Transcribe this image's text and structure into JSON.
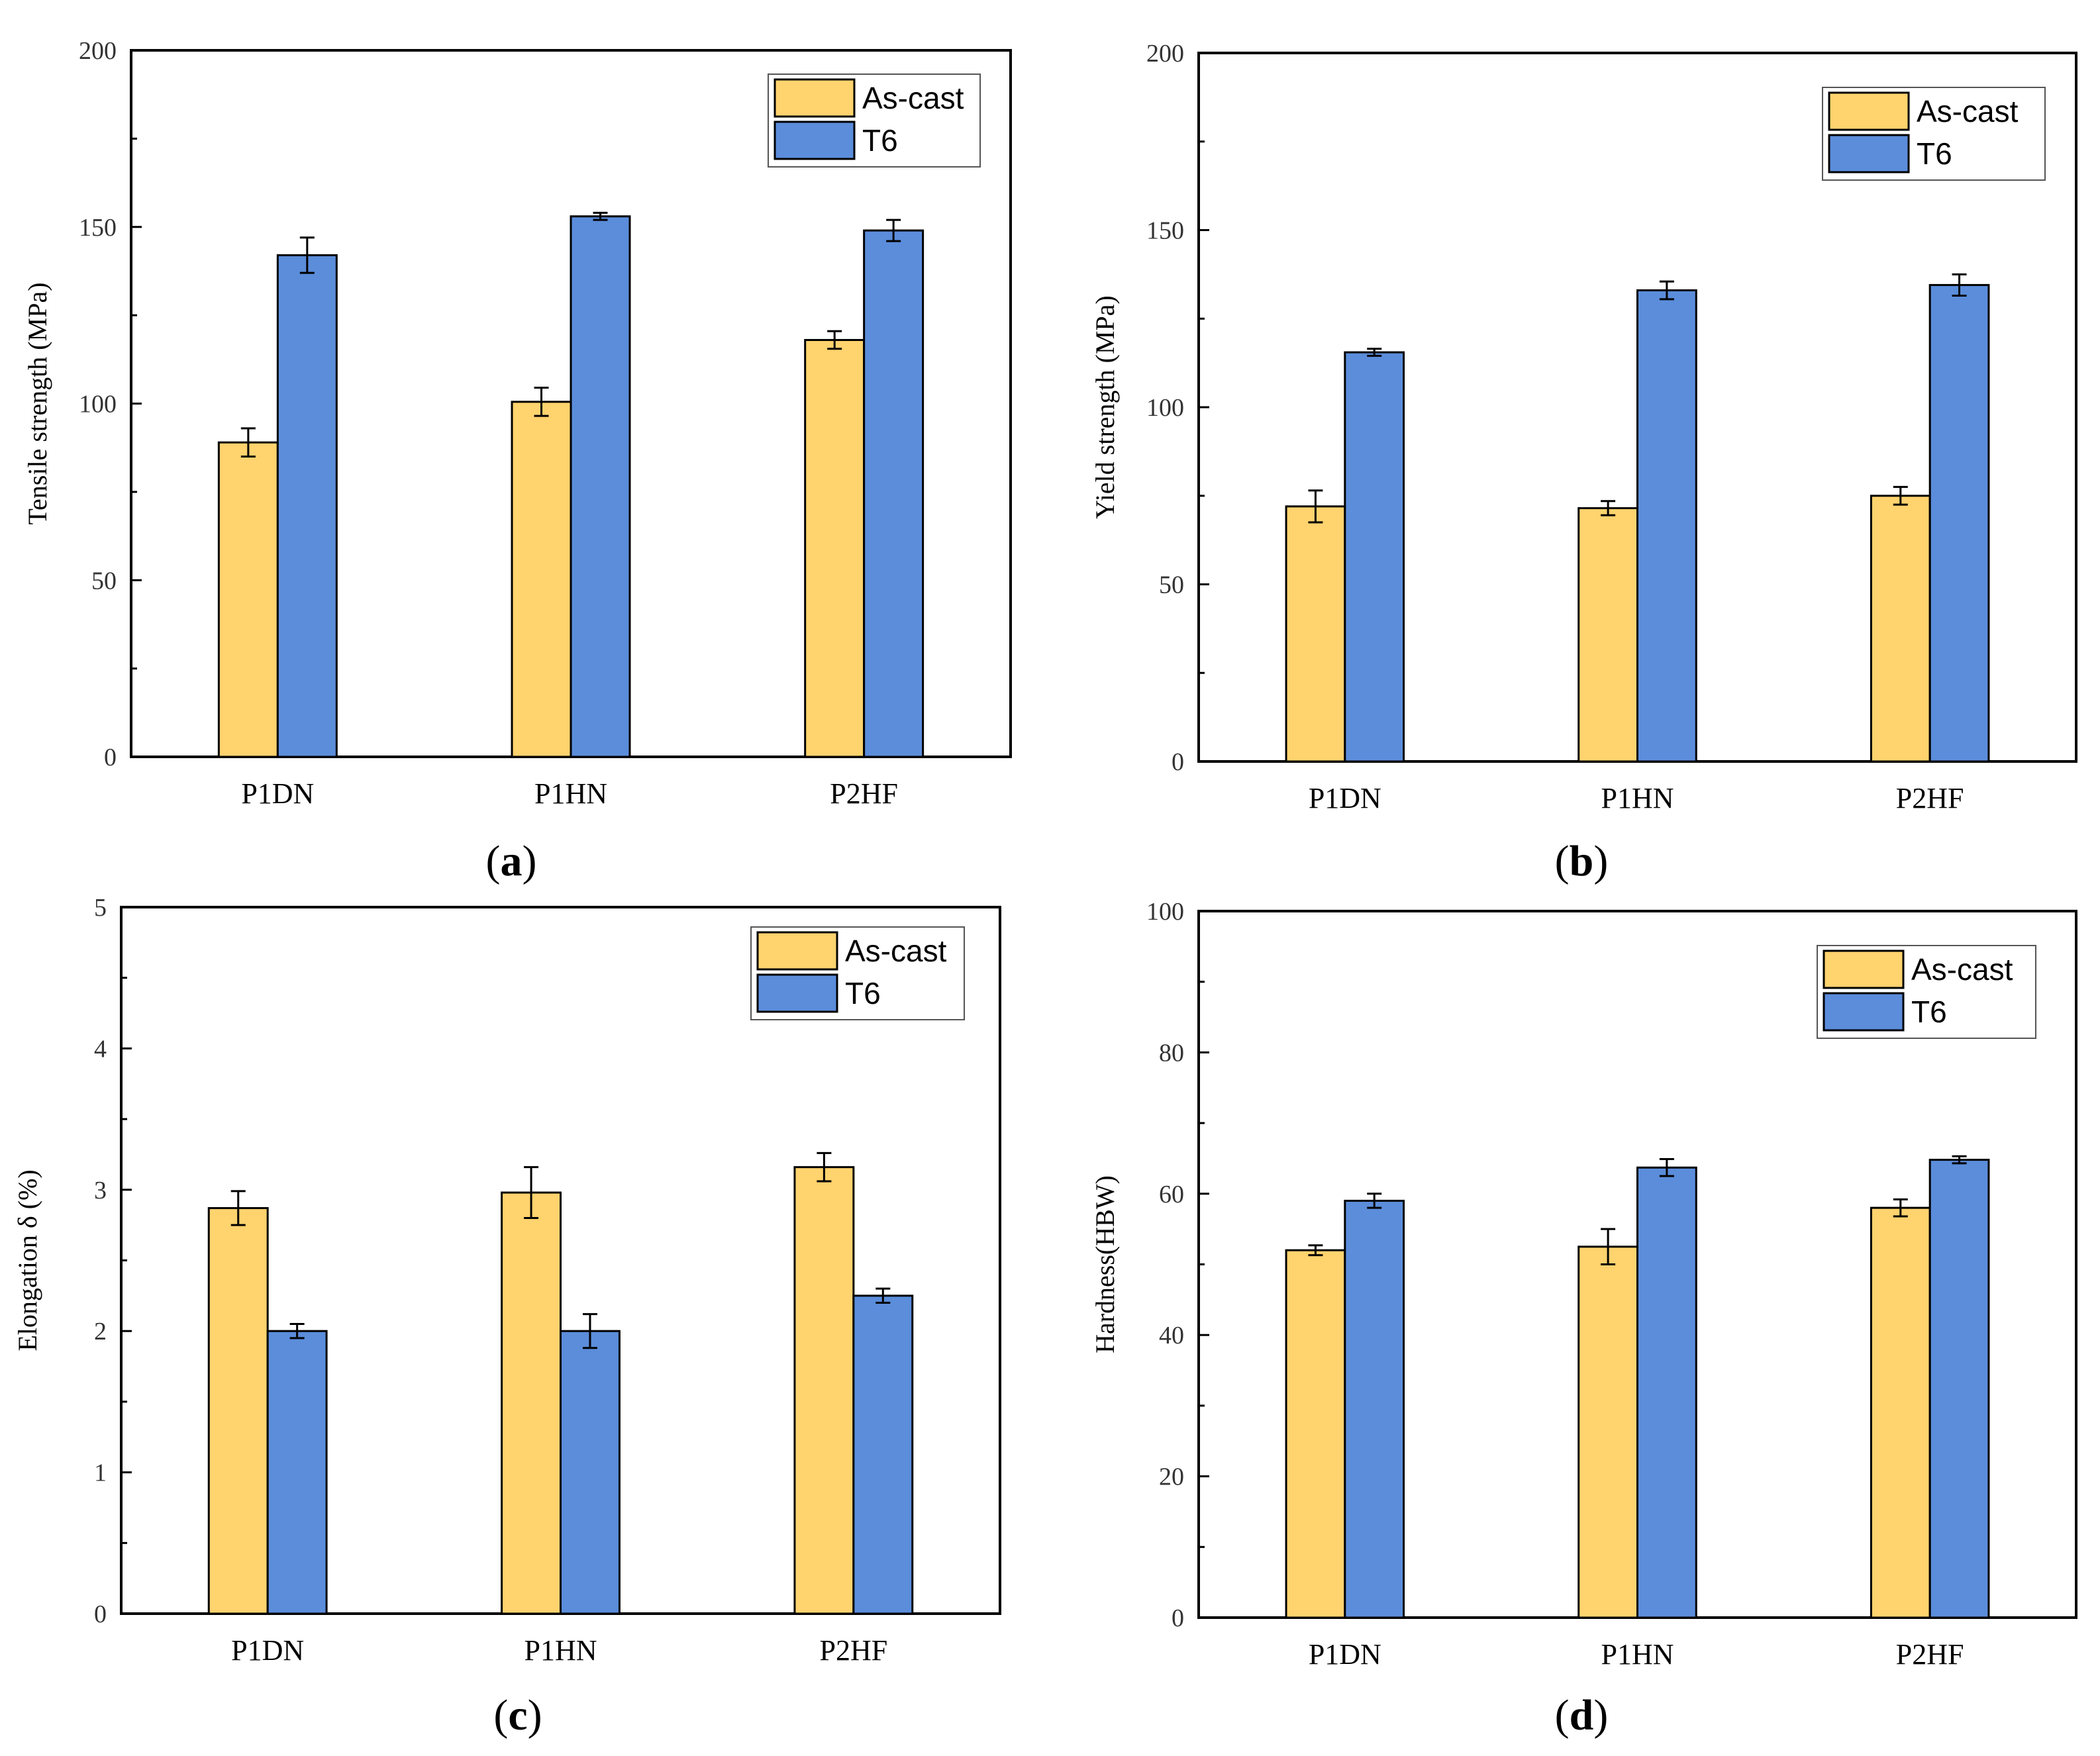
{
  "colors": {
    "as_cast": "#FFD36E",
    "t6": "#5B8DDB",
    "axis": "#000000"
  },
  "chart_data": [
    {
      "type": "bar",
      "panel_label": "a",
      "categories": [
        "P1DN",
        "P1HN",
        "P2HF"
      ],
      "ylabel": "Tensile strength (MPa)",
      "xlabel": "",
      "ylim": [
        0,
        200
      ],
      "yticks": [
        0,
        50,
        100,
        150,
        200
      ],
      "legend_position": "top-right",
      "series": [
        {
          "name": "As-cast",
          "values": [
            89,
            100.5,
            118
          ],
          "errors": [
            4,
            4,
            2.5
          ]
        },
        {
          "name": "T6",
          "values": [
            142,
            153,
            149
          ],
          "errors": [
            5,
            1,
            3
          ]
        }
      ]
    },
    {
      "type": "bar",
      "panel_label": "b",
      "categories": [
        "P1DN",
        "P1HN",
        "P2HF"
      ],
      "ylabel": "Yield strength (MPa)",
      "xlabel": "",
      "ylim": [
        0,
        200
      ],
      "yticks": [
        0,
        50,
        100,
        150,
        200
      ],
      "legend_position": "top-right",
      "series": [
        {
          "name": "As-cast",
          "values": [
            72,
            71.5,
            75
          ],
          "errors": [
            4.5,
            2,
            2.5
          ]
        },
        {
          "name": "T6",
          "values": [
            115.5,
            133,
            134.5
          ],
          "errors": [
            1,
            2.5,
            3
          ]
        }
      ]
    },
    {
      "type": "bar",
      "panel_label": "c",
      "categories": [
        "P1DN",
        "P1HN",
        "P2HF"
      ],
      "ylabel": "Elongation δ (%)",
      "xlabel": "",
      "ylim": [
        0,
        5
      ],
      "yticks": [
        0,
        1,
        2,
        3,
        4,
        5
      ],
      "legend_position": "top-right",
      "series": [
        {
          "name": "As-cast",
          "values": [
            2.87,
            2.98,
            3.16
          ],
          "errors": [
            0.12,
            0.18,
            0.1
          ]
        },
        {
          "name": "T6",
          "values": [
            2.0,
            2.0,
            2.25
          ],
          "errors": [
            0.05,
            0.12,
            0.05
          ]
        }
      ]
    },
    {
      "type": "bar",
      "panel_label": "d",
      "categories": [
        "P1DN",
        "P1HN",
        "P2HF"
      ],
      "ylabel": "Hardness(HBW)",
      "xlabel": "",
      "ylim": [
        0,
        100
      ],
      "yticks": [
        0,
        20,
        40,
        60,
        80,
        100
      ],
      "legend_position": "top-right",
      "series": [
        {
          "name": "As-cast",
          "values": [
            52,
            52.5,
            58
          ],
          "errors": [
            0.7,
            2.5,
            1.2
          ]
        },
        {
          "name": "T6",
          "values": [
            59,
            63.7,
            64.8
          ],
          "errors": [
            1,
            1.2,
            0.5
          ]
        }
      ]
    }
  ]
}
